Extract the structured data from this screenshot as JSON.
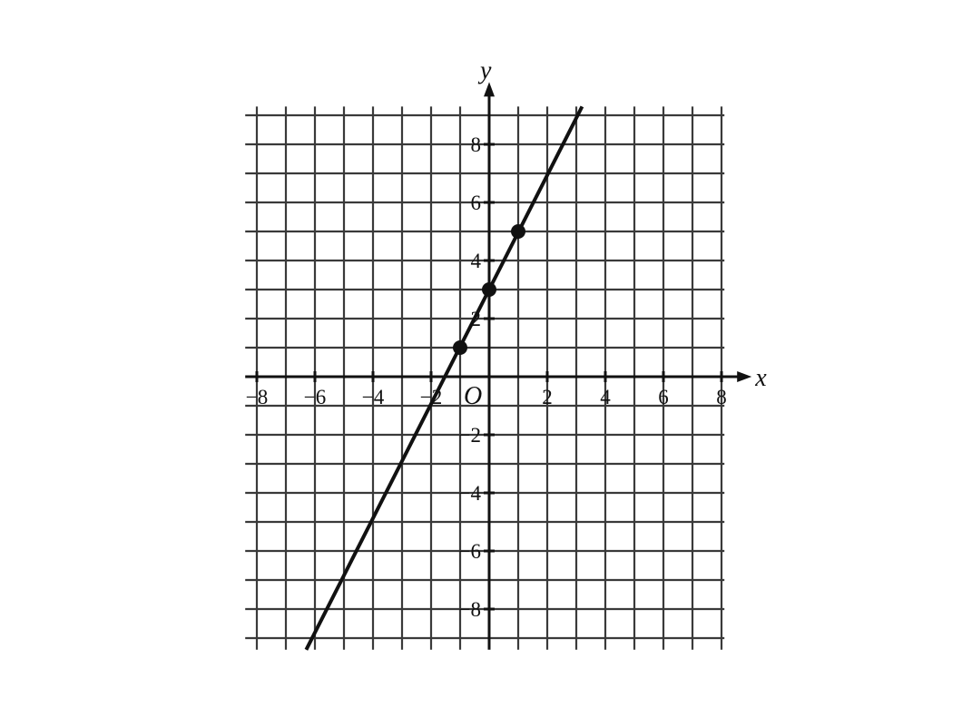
{
  "chart_data": {
    "type": "line",
    "xlabel": "x",
    "ylabel": "y",
    "origin_label": "O",
    "xlim": [
      -8.4,
      8.1
    ],
    "ylim": [
      -9.4,
      9.3
    ],
    "grid": true,
    "grid_step": 1,
    "x_ticks": [
      -8,
      -6,
      -4,
      -2,
      2,
      4,
      6,
      8
    ],
    "y_ticks": [
      -8,
      -6,
      -4,
      -2,
      2,
      4,
      6,
      8
    ],
    "x_tick_labels": [
      "−8",
      "−6",
      "−4",
      "−2",
      "2",
      "4",
      "6",
      "8"
    ],
    "y_tick_labels": [
      "−8",
      "−6",
      "−4",
      "−2",
      "2",
      "4",
      "6",
      "8"
    ],
    "series": [
      {
        "type": "line",
        "x": [
          -6.3,
          3.2
        ],
        "y": [
          -9.4,
          9.3
        ],
        "color": "#111111"
      }
    ],
    "points": [
      {
        "x": -1,
        "y": 1
      },
      {
        "x": 0,
        "y": 3
      },
      {
        "x": 1,
        "y": 5
      }
    ]
  }
}
